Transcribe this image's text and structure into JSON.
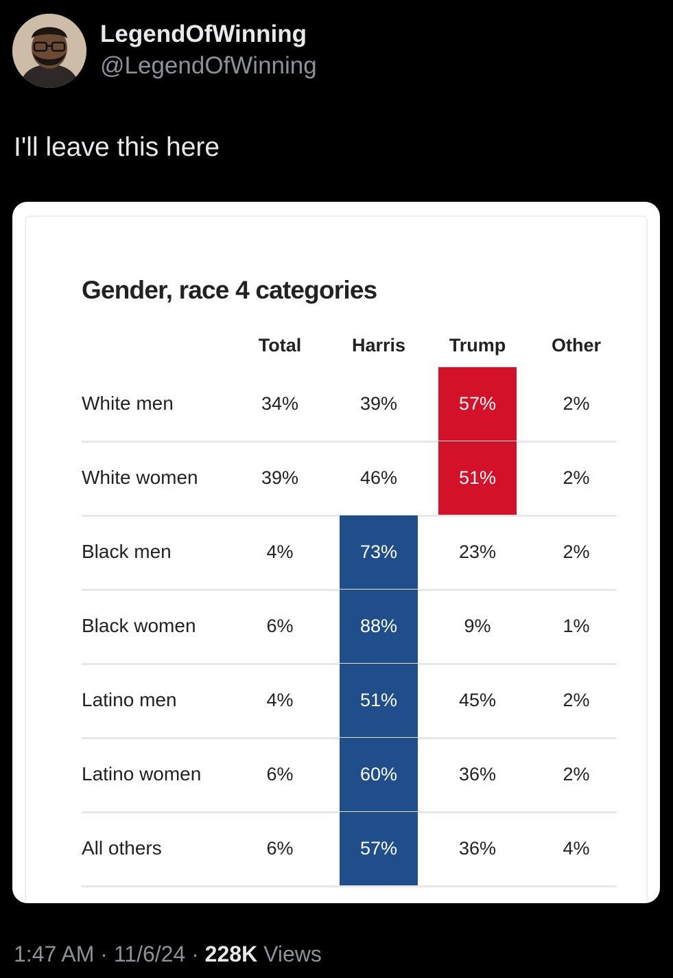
{
  "user": {
    "display_name": "LegendOfWinning",
    "handle": "@LegendOfWinning"
  },
  "tweet": {
    "text": "I'll leave this here"
  },
  "table": {
    "title": "Gender, race 4 categories",
    "columns": [
      "Total",
      "Harris",
      "Trump",
      "Other"
    ],
    "rows": [
      {
        "label": "White men",
        "values": [
          "34%",
          "39%",
          "57%",
          "2%"
        ],
        "leader": "Trump"
      },
      {
        "label": "White women",
        "values": [
          "39%",
          "46%",
          "51%",
          "2%"
        ],
        "leader": "Trump"
      },
      {
        "label": "Black men",
        "values": [
          "4%",
          "73%",
          "23%",
          "2%"
        ],
        "leader": "Harris"
      },
      {
        "label": "Black women",
        "values": [
          "6%",
          "88%",
          "9%",
          "1%"
        ],
        "leader": "Harris"
      },
      {
        "label": "Latino men",
        "values": [
          "4%",
          "51%",
          "45%",
          "2%"
        ],
        "leader": "Harris"
      },
      {
        "label": "Latino women",
        "values": [
          "6%",
          "60%",
          "36%",
          "2%"
        ],
        "leader": "Harris"
      },
      {
        "label": "All others",
        "values": [
          "6%",
          "57%",
          "36%",
          "4%"
        ],
        "leader": "Harris"
      }
    ],
    "colors": {
      "harris": "#1f4e8a",
      "trump": "#d31128"
    }
  },
  "footer": {
    "time": "1:47 AM",
    "date": "11/6/24",
    "views_count": "228K",
    "views_label": "Views"
  }
}
